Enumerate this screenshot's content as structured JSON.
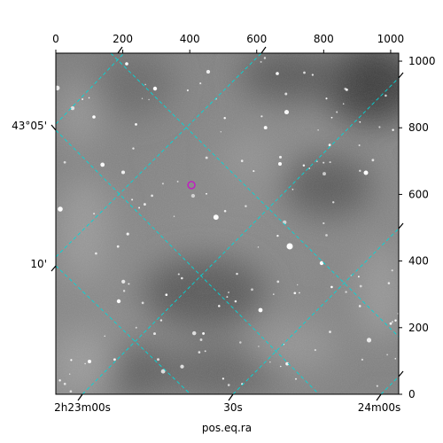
{
  "chart_data": {
    "type": "image",
    "xlabel": "pos.eq.ra",
    "pixel_axes": {
      "x": {
        "range": [
          0,
          1024
        ],
        "ticks": [
          0,
          200,
          400,
          600,
          800,
          1000
        ],
        "tick_labels": [
          "0",
          "200",
          "400",
          "600",
          "800",
          "1000"
        ]
      },
      "y": {
        "range": [
          0,
          1024
        ],
        "ticks": [
          0,
          200,
          400,
          600,
          800,
          1000
        ],
        "tick_labels": [
          "0",
          "200",
          "400",
          "600",
          "800",
          "1000"
        ]
      }
    },
    "world_axes": {
      "ra_tick_labels": [
        "2h23m00s",
        "30s",
        "24m00s"
      ],
      "dec_tick_labels": [
        "43°05'",
        "10'"
      ]
    },
    "grid": true,
    "grid_color": "#00d8d8",
    "marker": {
      "x": 405,
      "y": 628,
      "color": "#c020c0"
    },
    "image_colormap": "gray"
  }
}
